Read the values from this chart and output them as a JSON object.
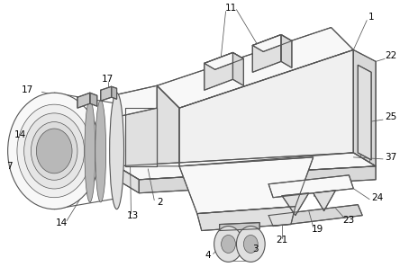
{
  "background_color": "#ffffff",
  "line_color": "#555555",
  "label_color": "#000000",
  "figure_width": 4.44,
  "figure_height": 3.07,
  "dpi": 100
}
